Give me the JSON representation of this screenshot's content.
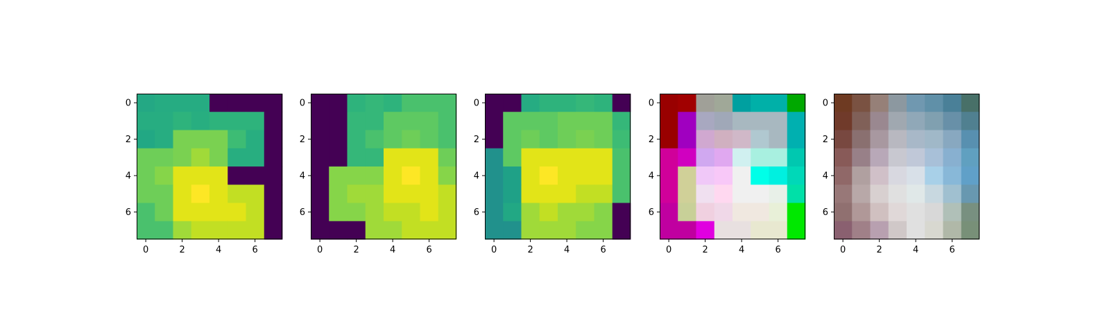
{
  "figure": {
    "background": "#ffffff",
    "frame_color": "#000000"
  },
  "chart_data": [
    {
      "type": "heatmap",
      "title": "",
      "xlabel": "",
      "ylabel": "",
      "x_ticks": [
        0,
        2,
        4,
        6
      ],
      "y_ticks": [
        0,
        2,
        4,
        6
      ],
      "xlim": [
        -0.5,
        7.5
      ],
      "ylim": [
        7.5,
        -0.5
      ],
      "rows": [
        [
          "#24a884",
          "#26ac82",
          "#26ac82",
          "#26ac82",
          "#440154",
          "#440154",
          "#440154",
          "#440154"
        ],
        [
          "#27ad81",
          "#27ad81",
          "#2eb37c",
          "#28ae80",
          "#2eb37c",
          "#2eb37c",
          "#2eb37c",
          "#440154"
        ],
        [
          "#22a884",
          "#27ad81",
          "#7ad151",
          "#7ad151",
          "#7ad151",
          "#3dbc74",
          "#28ae80",
          "#440154"
        ],
        [
          "#6ece58",
          "#6ece58",
          "#7ad151",
          "#a0da39",
          "#7ad151",
          "#28ae80",
          "#28ae80",
          "#440154"
        ],
        [
          "#6ece58",
          "#86d549",
          "#e2e418",
          "#e2e418",
          "#e2e418",
          "#440154",
          "#440154",
          "#440154"
        ],
        [
          "#6ece58",
          "#6ece58",
          "#e2e418",
          "#fde725",
          "#e2e418",
          "#c2df23",
          "#c2df23",
          "#440154"
        ],
        [
          "#4ac16d",
          "#6ece58",
          "#e2e418",
          "#e2e418",
          "#e2e418",
          "#e2e418",
          "#c2df23",
          "#440154"
        ],
        [
          "#4ac16d",
          "#4ac16d",
          "#a0da39",
          "#c2df23",
          "#c2df23",
          "#c2df23",
          "#c2df23",
          "#440154"
        ]
      ]
    },
    {
      "type": "heatmap",
      "title": "",
      "xlabel": "",
      "ylabel": "",
      "x_ticks": [
        0,
        2,
        4,
        6
      ],
      "y_ticks": [
        0,
        2,
        4,
        6
      ],
      "xlim": [
        -0.5,
        7.5
      ],
      "ylim": [
        7.5,
        -0.5
      ],
      "rows": [
        [
          "#440154",
          "#440154",
          "#2eb37c",
          "#35b779",
          "#2eb37c",
          "#4ac16d",
          "#4ac16d",
          "#4ac16d"
        ],
        [
          "#440154",
          "#440154",
          "#35b779",
          "#35b779",
          "#5ec962",
          "#5ec962",
          "#5ec962",
          "#4ac16d"
        ],
        [
          "#440154",
          "#440154",
          "#35b779",
          "#4ac16d",
          "#5ec962",
          "#6ece58",
          "#5ec962",
          "#4ac16d"
        ],
        [
          "#440154",
          "#440154",
          "#35b779",
          "#35b779",
          "#e2e418",
          "#e2e418",
          "#e2e418",
          "#6ece58"
        ],
        [
          "#440154",
          "#86d549",
          "#86d549",
          "#86d549",
          "#e2e418",
          "#fde725",
          "#e2e418",
          "#86d549"
        ],
        [
          "#440154",
          "#86d549",
          "#a0da39",
          "#a0da39",
          "#e2e418",
          "#e2e418",
          "#e2e418",
          "#c2df23"
        ],
        [
          "#440154",
          "#86d549",
          "#86d549",
          "#a0da39",
          "#c2df23",
          "#c2df23",
          "#e2e418",
          "#c2df23"
        ],
        [
          "#440154",
          "#440154",
          "#440154",
          "#a0da39",
          "#a0da39",
          "#c2df23",
          "#c2df23",
          "#c2df23"
        ]
      ]
    },
    {
      "type": "heatmap",
      "title": "",
      "xlabel": "",
      "ylabel": "",
      "x_ticks": [
        0,
        2,
        4,
        6
      ],
      "y_ticks": [
        0,
        2,
        4,
        6
      ],
      "xlim": [
        -0.5,
        7.5
      ],
      "ylim": [
        7.5,
        -0.5
      ],
      "rows": [
        [
          "#440154",
          "#440154",
          "#26ac82",
          "#2eb37c",
          "#2eb37c",
          "#35b779",
          "#2eb37c",
          "#440154"
        ],
        [
          "#440154",
          "#5ec962",
          "#5ec962",
          "#5ec962",
          "#6ece58",
          "#6ece58",
          "#6ece58",
          "#35b779"
        ],
        [
          "#440154",
          "#5ec962",
          "#6ece58",
          "#5ec962",
          "#6ece58",
          "#7ad151",
          "#6ece58",
          "#3dbc74"
        ],
        [
          "#21918c",
          "#5ec962",
          "#e2e418",
          "#e2e418",
          "#e2e418",
          "#e2e418",
          "#e2e418",
          "#4ac16d"
        ],
        [
          "#21918c",
          "#1fa187",
          "#e2e418",
          "#fde725",
          "#e2e418",
          "#e2e418",
          "#e2e418",
          "#4ac16d"
        ],
        [
          "#21918c",
          "#1fa187",
          "#e2e418",
          "#e2e418",
          "#e2e418",
          "#c2df23",
          "#c2df23",
          "#4ac16d"
        ],
        [
          "#21918c",
          "#22a884",
          "#a0da39",
          "#c2df23",
          "#a0da39",
          "#a0da39",
          "#86d549",
          "#440154"
        ],
        [
          "#21918c",
          "#21918c",
          "#a0da39",
          "#a0da39",
          "#a0da39",
          "#86d549",
          "#86d549",
          "#440154"
        ]
      ]
    },
    {
      "type": "heatmap",
      "title": "",
      "xlabel": "",
      "ylabel": "",
      "x_ticks": [
        0,
        2,
        4,
        6
      ],
      "y_ticks": [
        0,
        2,
        4,
        6
      ],
      "xlim": [
        -0.5,
        7.5
      ],
      "ylim": [
        7.5,
        -0.5
      ],
      "rows": [
        [
          "#990000",
          "#a10000",
          "#a0a098",
          "#a0a898",
          "#00a0a0",
          "#00b0a8",
          "#00b0a8",
          "#00a800"
        ],
        [
          "#990000",
          "#a000c0",
          "#a8a8c0",
          "#a0a8b8",
          "#a8b8c0",
          "#a8b8c0",
          "#a8b8c0",
          "#00b0b0"
        ],
        [
          "#990000",
          "#a000c0",
          "#d0a8d0",
          "#d0b0c0",
          "#d0b8c8",
          "#b0c8d0",
          "#a8b8c0",
          "#00b0b0"
        ],
        [
          "#d0009a",
          "#d000c0",
          "#d0a8f0",
          "#e0a8f0",
          "#d0f0f0",
          "#a8f0e0",
          "#a8f0e0",
          "#00c8b0"
        ],
        [
          "#d0009a",
          "#d0d098",
          "#f0c8f8",
          "#f8c8f8",
          "#f0f0f0",
          "#00ffe8",
          "#00f0e0",
          "#00d8b8"
        ],
        [
          "#d0009a",
          "#d0d098",
          "#f0e0f0",
          "#ffd8f0",
          "#f0f0f0",
          "#f0f0f0",
          "#e8f0e8",
          "#00e0a8"
        ],
        [
          "#c000a0",
          "#c8d098",
          "#f0d0e0",
          "#f0d8e8",
          "#f0e8e0",
          "#f0e8e0",
          "#e8f0d8",
          "#00e800"
        ],
        [
          "#c000a0",
          "#c000a0",
          "#e000e0",
          "#e8e0e0",
          "#e8e0e0",
          "#e8e8d0",
          "#e8e8d0",
          "#00e800"
        ]
      ]
    },
    {
      "type": "heatmap",
      "title": "",
      "xlabel": "",
      "ylabel": "",
      "x_ticks": [
        0,
        2,
        4,
        6
      ],
      "y_ticks": [
        0,
        2,
        4,
        6
      ],
      "xlim": [
        -0.5,
        7.5
      ],
      "ylim": [
        7.5,
        -0.5
      ],
      "rows": [
        [
          "#6e3a22",
          "#7a5242",
          "#968078",
          "#8c98a0",
          "#7098b0",
          "#6090a8",
          "#4a8098",
          "#487068"
        ],
        [
          "#703a2a",
          "#806058",
          "#9a8890",
          "#a0a8b0",
          "#90a8b8",
          "#80a0b0",
          "#6890a8",
          "#508090"
        ],
        [
          "#784840",
          "#8a7070",
          "#a898a0",
          "#b8b8c0",
          "#a8b8c8",
          "#a0b8c8",
          "#88a8c0",
          "#5890b0"
        ],
        [
          "#885a58",
          "#988088",
          "#b8a8b8",
          "#c8c8d0",
          "#c0c8d8",
          "#a8c0d8",
          "#88b0d0",
          "#60a0c0"
        ],
        [
          "#906868",
          "#b0a0a0",
          "#d0c0c8",
          "#d8d8e0",
          "#d8e0e8",
          "#a8d0e8",
          "#88b8d8",
          "#60a0c8"
        ],
        [
          "#987878",
          "#b8a8a8",
          "#d8d0d0",
          "#e0e0e0",
          "#e0e8e8",
          "#c8d8e0",
          "#a0c0d0",
          "#6898b0"
        ],
        [
          "#907070",
          "#b09898",
          "#d0c0c0",
          "#e0d8d8",
          "#e0e0e0",
          "#d8d8d8",
          "#b0c0b8",
          "#789080"
        ],
        [
          "#8a6070",
          "#a08088",
          "#b8a0b0",
          "#d0c8c8",
          "#e0e0e0",
          "#d8d8d0",
          "#b0b8a8",
          "#789078"
        ]
      ]
    }
  ]
}
